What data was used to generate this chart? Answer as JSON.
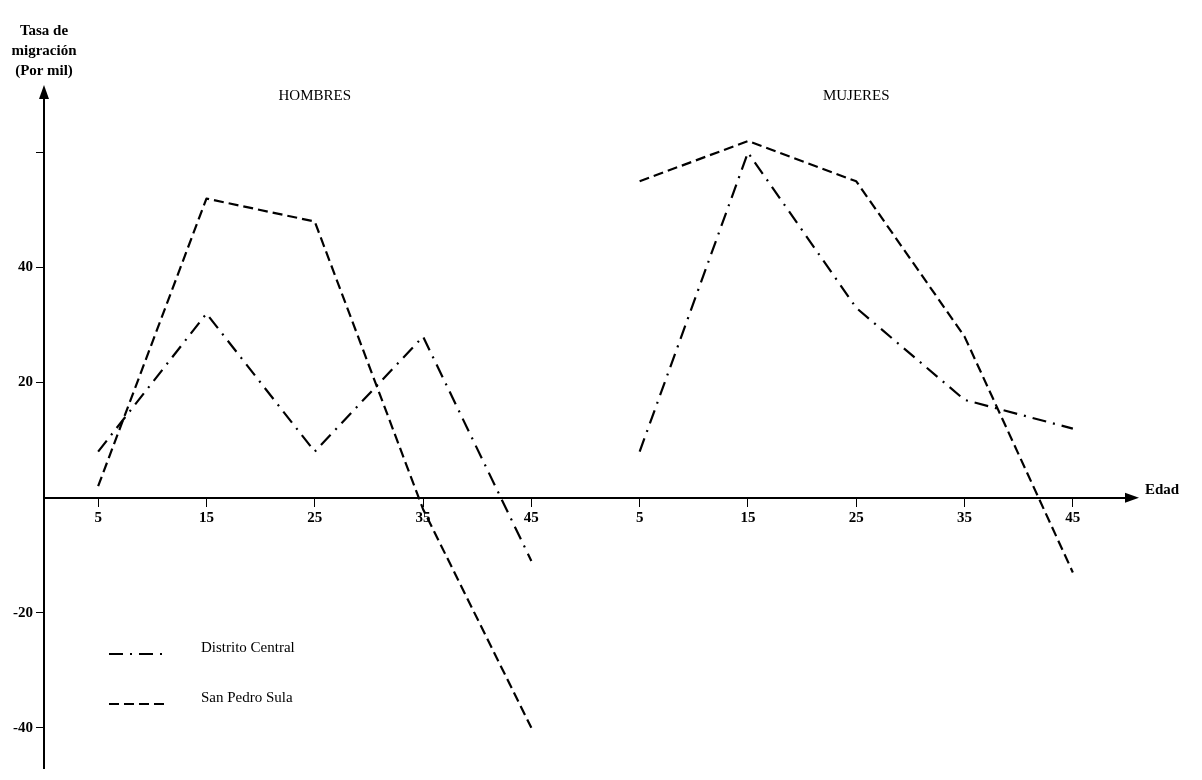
{
  "chart_data": {
    "type": "line",
    "xlabel": "Edad",
    "ylabel": "Tasa de migración (Por mil)",
    "annotations": [
      "HOMBRES",
      "MUJERES"
    ],
    "categories": [
      "5",
      "15",
      "25",
      "35",
      "45",
      "5",
      "15",
      "25",
      "35",
      "45"
    ],
    "series": [
      {
        "name": "Distrito Central",
        "color": "#000000",
        "line_style": "dashdot",
        "values": [
          8,
          32,
          8,
          28,
          -11,
          null,
          null,
          null,
          null,
          null
        ]
      },
      {
        "name": "San Pedro Sula",
        "color": "#000000",
        "line_style": "dashed",
        "values": [
          2,
          52,
          48,
          -2,
          -40,
          null,
          null,
          null,
          null,
          null
        ]
      },
      {
        "color": "#000000",
        "line_style": "dashdot",
        "values": [
          null,
          null,
          null,
          null,
          null,
          8,
          60,
          33,
          17,
          12
        ]
      },
      {
        "color": "#000000",
        "line_style": "dashed",
        "values": [
          null,
          null,
          null,
          null,
          null,
          55,
          62,
          55,
          28,
          -13
        ]
      }
    ],
    "ylim": [
      -47,
      70
    ],
    "yticks": [
      {
        "value": 60,
        "label": null
      },
      40,
      20,
      -20,
      -40
    ],
    "grid": false,
    "legend": "bottom left",
    "marker": "none"
  }
}
